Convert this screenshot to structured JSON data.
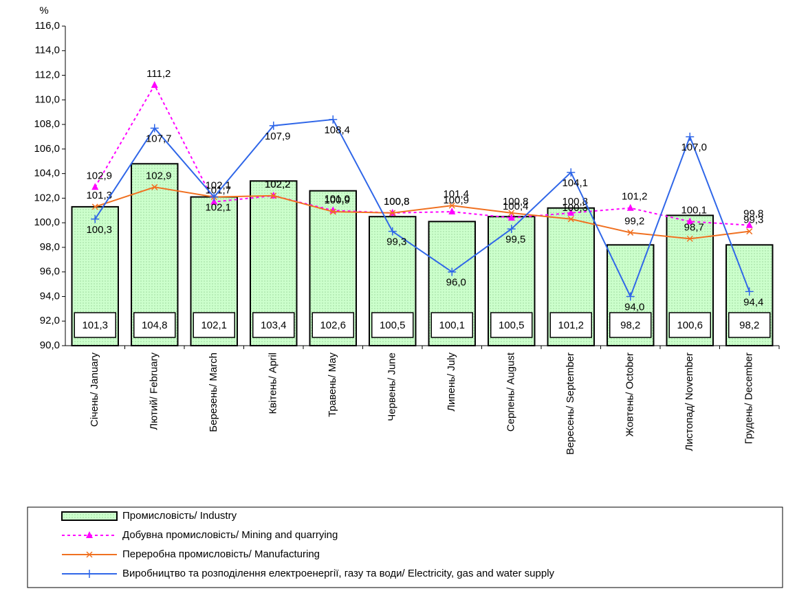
{
  "chart_data": {
    "type": "combo",
    "y_label": "%",
    "categories": [
      "Січень/ January",
      "Лютий/ February",
      "Березень/ March",
      "Квітень/ April",
      "Травень/ May",
      "Червень/ June",
      "Липень/ July",
      "Серпень/ August",
      "Вересень/ September",
      "Жовтень/ October",
      "Листопад/ November",
      "Грудень/ December"
    ],
    "ylim": [
      90,
      116
    ],
    "yticks": [
      {
        "value": 90,
        "label": "90,0"
      },
      {
        "value": 92,
        "label": "92,0"
      },
      {
        "value": 94,
        "label": "94,0"
      },
      {
        "value": 96,
        "label": "96,0"
      },
      {
        "value": 98,
        "label": "98,0"
      },
      {
        "value": 100,
        "label": "100,0"
      },
      {
        "value": 102,
        "label": "102,0"
      },
      {
        "value": 104,
        "label": "104,0"
      },
      {
        "value": 106,
        "label": "106,0"
      },
      {
        "value": 108,
        "label": "108,0"
      },
      {
        "value": 110,
        "label": "110,0"
      },
      {
        "value": 112,
        "label": "112,0"
      },
      {
        "value": 114,
        "label": "114,0"
      },
      {
        "value": 116,
        "label": "116,0"
      }
    ],
    "series": [
      {
        "name": "Промисловість/ Industry",
        "type": "bar",
        "color": "#ccffcc",
        "values": [
          101.3,
          104.8,
          102.1,
          103.4,
          102.6,
          100.5,
          100.1,
          100.5,
          101.2,
          98.2,
          100.6,
          98.2
        ],
        "value_labels": [
          "101,3",
          "104,8",
          "102,1",
          "103,4",
          "102,6",
          "100,5",
          "100,1",
          "100,5",
          "101,2",
          "98,2",
          "100,6",
          "98,2"
        ]
      },
      {
        "name": "Добувна промисловість/ Mining and quarrying",
        "type": "line",
        "color": "#ff00ff",
        "dashed": true,
        "marker": "triangle",
        "values": [
          102.9,
          111.2,
          101.7,
          102.2,
          101.0,
          100.8,
          100.9,
          100.4,
          100.8,
          101.2,
          100.1,
          99.8
        ],
        "value_labels": [
          "102,9",
          "111,2",
          "101,7",
          "102,2",
          "101,0",
          "100,8",
          "100,9",
          "100,4",
          "100,8",
          "101,2",
          "100,1",
          "99,8"
        ]
      },
      {
        "name": "Переробна промисловість/ Manufacturing",
        "type": "line",
        "color": "#f07020",
        "dashed": false,
        "marker": "x",
        "values": [
          101.3,
          102.9,
          102.1,
          102.2,
          100.9,
          100.8,
          101.4,
          100.8,
          100.3,
          99.2,
          98.7,
          99.3
        ],
        "value_labels": [
          "101,3",
          "102,9",
          "102,1",
          "102,2",
          "100,9",
          "100,8",
          "101,4",
          "100,8",
          "100,3",
          "99,2",
          "98,7",
          "99,3"
        ]
      },
      {
        "name": "Виробництво та розподілення електроенергії, газу та води/ Electricity, gas and water supply",
        "type": "line",
        "color": "#2f66e8",
        "dashed": false,
        "marker": "plus",
        "values": [
          100.3,
          107.7,
          102.1,
          107.9,
          108.4,
          99.3,
          96.0,
          99.5,
          104.1,
          94.0,
          107.0,
          94.4
        ],
        "value_labels": [
          "100,3",
          "107,7",
          "102,1",
          "107,9",
          "108,4",
          "99,3",
          "96,0",
          "99,5",
          "104,1",
          "94,0",
          "107,0",
          "94,4"
        ]
      }
    ]
  }
}
